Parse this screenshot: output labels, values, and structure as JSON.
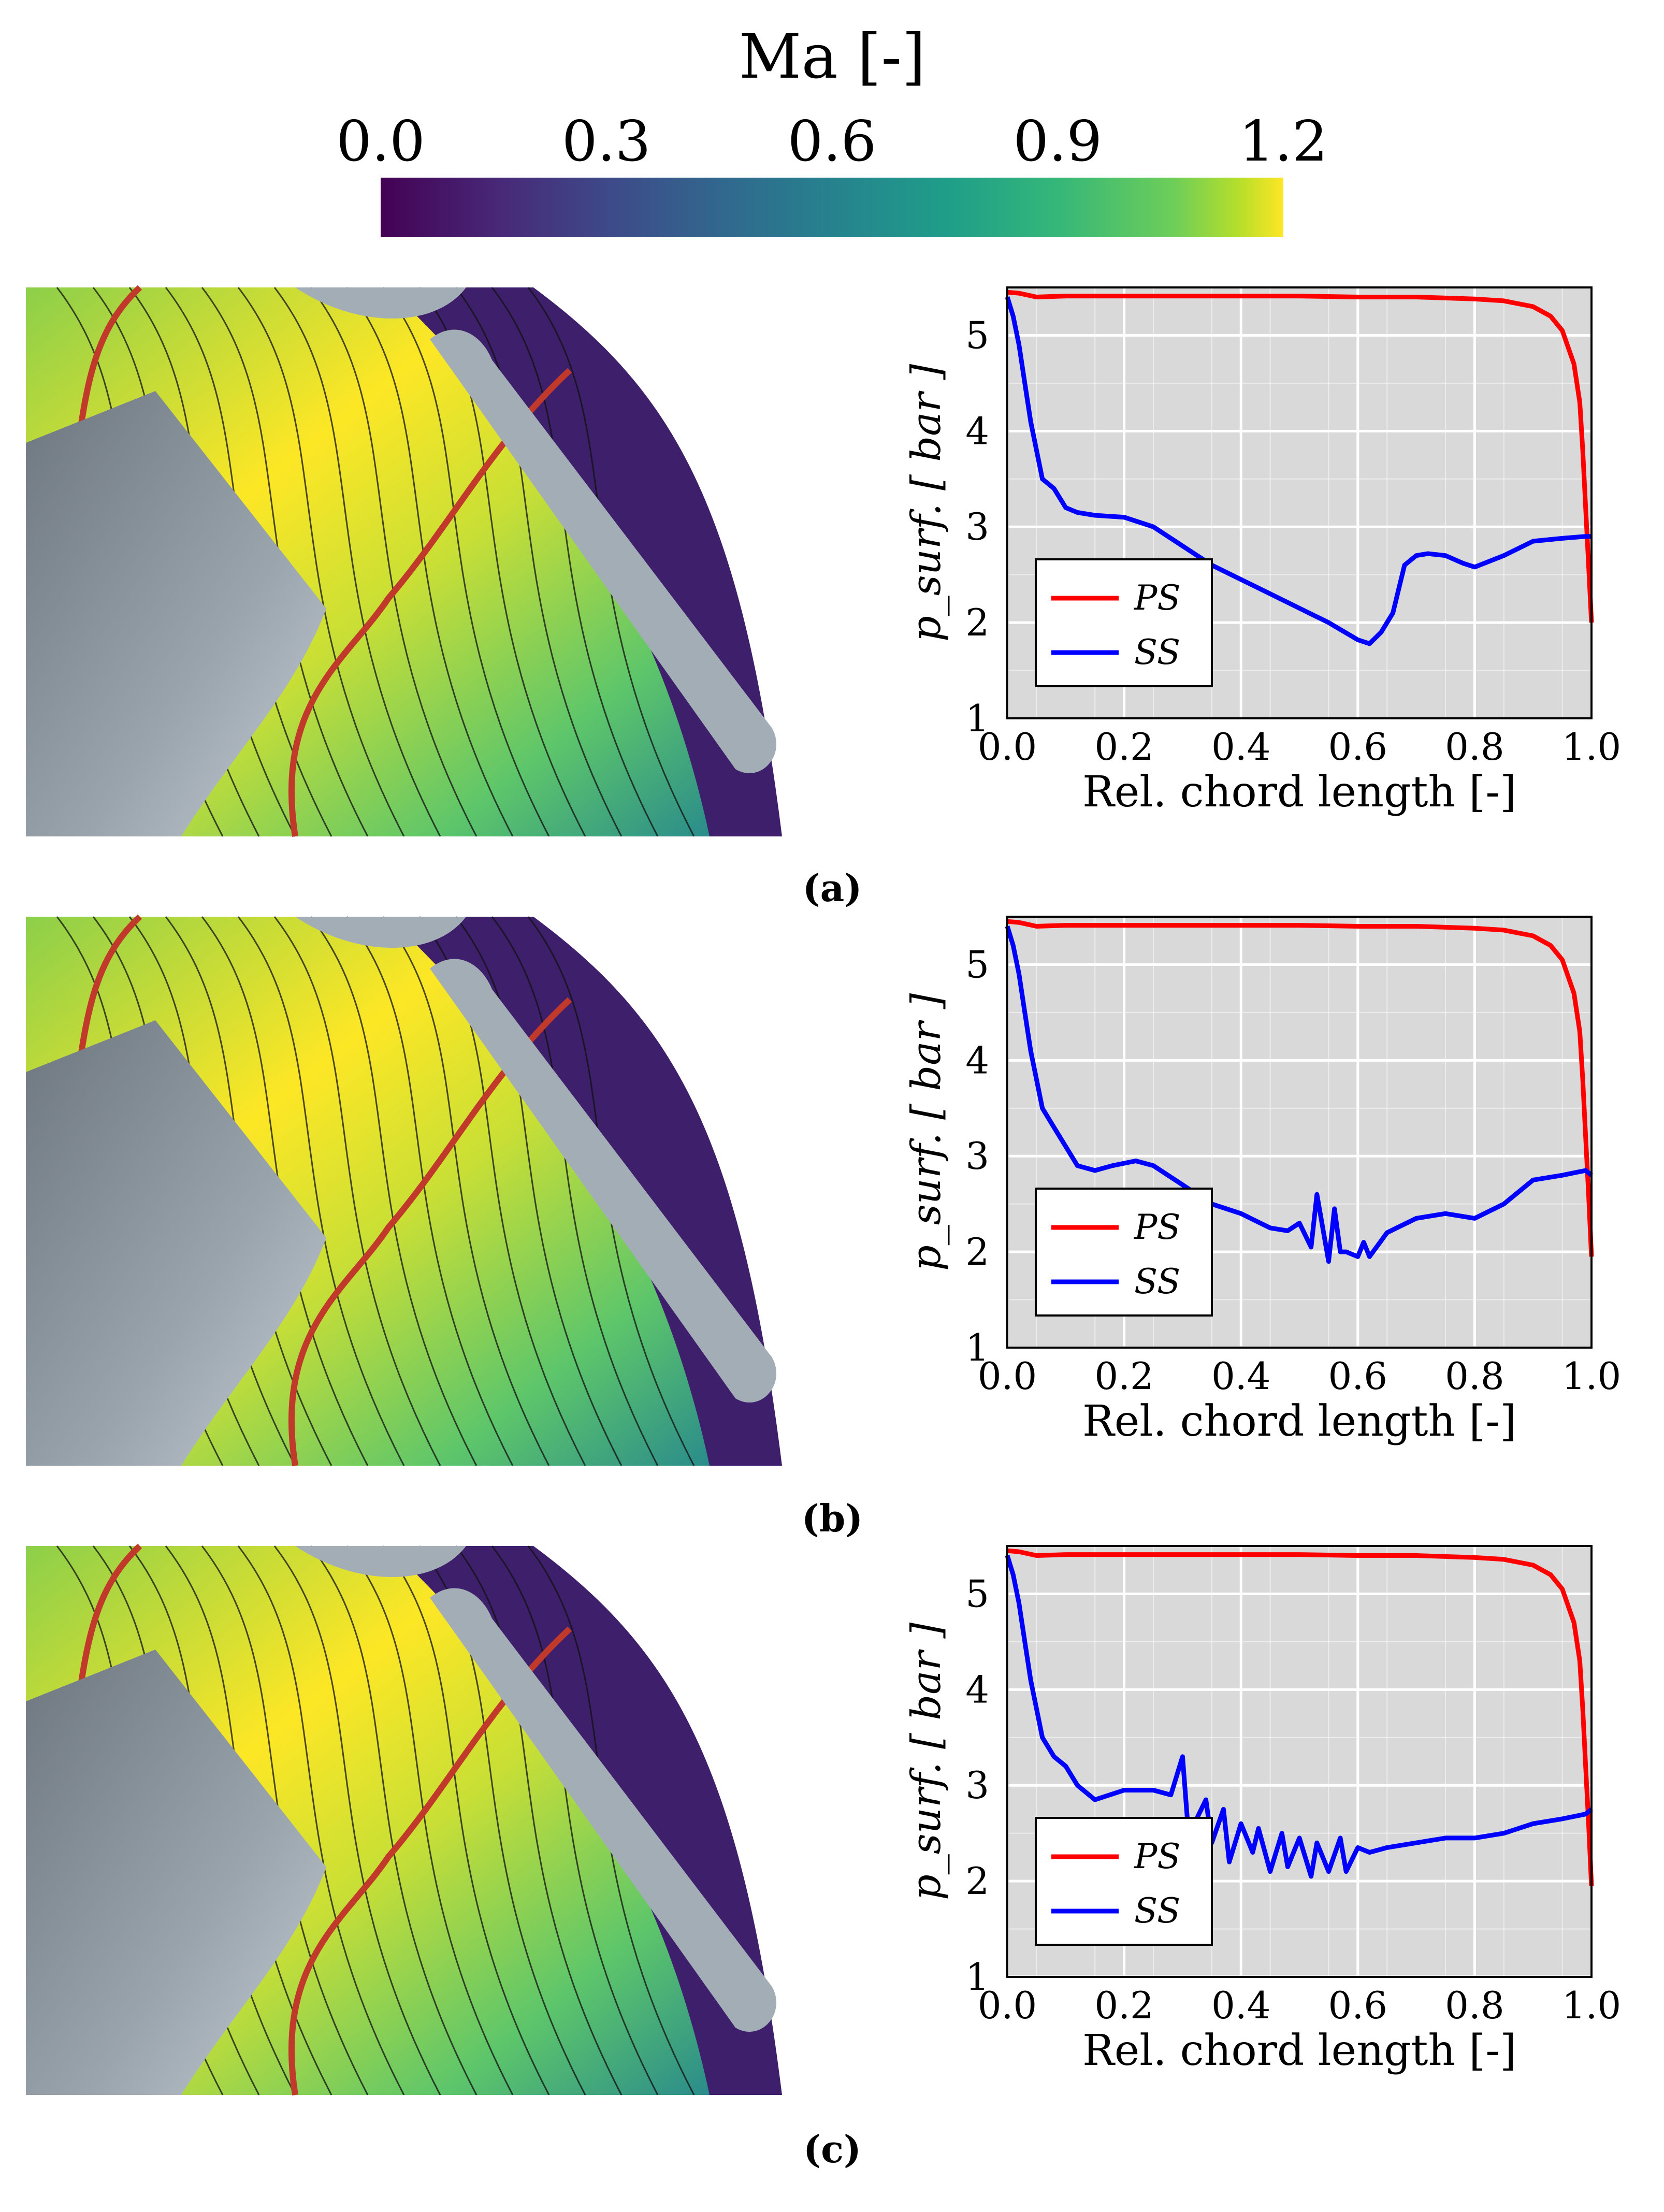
{
  "colorbar": {
    "title": "Ma [-]",
    "ticks": [
      "0.0",
      "0.3",
      "0.6",
      "0.9",
      "1.2"
    ],
    "range": [
      0.0,
      1.2
    ]
  },
  "panel_labels": [
    "(a)",
    "(b)",
    "(c)"
  ],
  "colors": {
    "ps": "#ff0000",
    "ss": "#0000ff",
    "plot_bg": "#d9d9d9",
    "blade": "#a3adb6",
    "hub": "#8c969f",
    "outer": "#3e1f6b"
  },
  "chart_data": [
    {
      "type": "line",
      "panel": "(a)",
      "xlabel": "Rel. chord length [-]",
      "ylabel": "p_surf. [ bar ]",
      "xlim": [
        0.0,
        1.0
      ],
      "ylim": [
        1,
        5.5
      ],
      "xticks": [
        "0.0",
        "0.2",
        "0.4",
        "0.6",
        "0.8",
        "1.0"
      ],
      "yticks": [
        "1",
        "2",
        "3",
        "4",
        "5"
      ],
      "legend": [
        "PS",
        "SS"
      ],
      "series": [
        {
          "name": "PS",
          "x": [
            0.0,
            0.02,
            0.05,
            0.1,
            0.2,
            0.3,
            0.4,
            0.5,
            0.6,
            0.7,
            0.8,
            0.85,
            0.9,
            0.93,
            0.95,
            0.97,
            0.98,
            0.985,
            0.99,
            0.995,
            1.0
          ],
          "y": [
            5.45,
            5.44,
            5.4,
            5.41,
            5.41,
            5.41,
            5.41,
            5.41,
            5.4,
            5.4,
            5.38,
            5.36,
            5.3,
            5.2,
            5.05,
            4.7,
            4.3,
            3.8,
            3.2,
            2.6,
            2.0
          ]
        },
        {
          "name": "SS",
          "x": [
            0.0,
            0.01,
            0.02,
            0.03,
            0.04,
            0.06,
            0.08,
            0.1,
            0.12,
            0.15,
            0.2,
            0.25,
            0.3,
            0.35,
            0.4,
            0.45,
            0.5,
            0.55,
            0.6,
            0.62,
            0.64,
            0.66,
            0.68,
            0.7,
            0.72,
            0.75,
            0.78,
            0.8,
            0.85,
            0.9,
            0.95,
            0.99,
            1.0
          ],
          "y": [
            5.4,
            5.2,
            4.9,
            4.5,
            4.1,
            3.5,
            3.4,
            3.2,
            3.15,
            3.12,
            3.1,
            3.0,
            2.8,
            2.6,
            2.45,
            2.3,
            2.15,
            2.0,
            1.82,
            1.78,
            1.9,
            2.1,
            2.6,
            2.7,
            2.72,
            2.7,
            2.62,
            2.58,
            2.7,
            2.85,
            2.88,
            2.9,
            2.9
          ]
        }
      ]
    },
    {
      "type": "line",
      "panel": "(b)",
      "xlabel": "Rel. chord length [-]",
      "ylabel": "p_surf. [ bar ]",
      "xlim": [
        0.0,
        1.0
      ],
      "ylim": [
        1,
        5.5
      ],
      "xticks": [
        "0.0",
        "0.2",
        "0.4",
        "0.6",
        "0.8",
        "1.0"
      ],
      "yticks": [
        "1",
        "2",
        "3",
        "4",
        "5"
      ],
      "legend": [
        "PS",
        "SS"
      ],
      "series": [
        {
          "name": "PS",
          "x": [
            0.0,
            0.02,
            0.05,
            0.1,
            0.2,
            0.3,
            0.4,
            0.5,
            0.6,
            0.7,
            0.8,
            0.85,
            0.9,
            0.93,
            0.95,
            0.97,
            0.98,
            0.985,
            0.99,
            0.995,
            1.0
          ],
          "y": [
            5.45,
            5.44,
            5.4,
            5.41,
            5.41,
            5.41,
            5.41,
            5.41,
            5.4,
            5.4,
            5.38,
            5.36,
            5.3,
            5.2,
            5.05,
            4.7,
            4.3,
            3.8,
            3.2,
            2.6,
            1.95
          ]
        },
        {
          "name": "SS",
          "x": [
            0.0,
            0.01,
            0.02,
            0.03,
            0.04,
            0.06,
            0.08,
            0.1,
            0.12,
            0.15,
            0.18,
            0.22,
            0.25,
            0.3,
            0.35,
            0.4,
            0.45,
            0.48,
            0.5,
            0.52,
            0.53,
            0.55,
            0.56,
            0.57,
            0.58,
            0.6,
            0.61,
            0.62,
            0.65,
            0.7,
            0.75,
            0.8,
            0.85,
            0.9,
            0.95,
            0.99,
            1.0
          ],
          "y": [
            5.4,
            5.2,
            4.9,
            4.5,
            4.1,
            3.5,
            3.3,
            3.1,
            2.9,
            2.85,
            2.9,
            2.95,
            2.9,
            2.7,
            2.5,
            2.4,
            2.25,
            2.22,
            2.3,
            2.05,
            2.6,
            1.9,
            2.45,
            2.0,
            2.0,
            1.95,
            2.1,
            1.95,
            2.2,
            2.35,
            2.4,
            2.35,
            2.5,
            2.75,
            2.8,
            2.85,
            2.8
          ]
        }
      ]
    },
    {
      "type": "line",
      "panel": "(c)",
      "xlabel": "Rel. chord length [-]",
      "ylabel": "p_surf. [ bar ]",
      "xlim": [
        0.0,
        1.0
      ],
      "ylim": [
        1,
        5.5
      ],
      "xticks": [
        "0.0",
        "0.2",
        "0.4",
        "0.6",
        "0.8",
        "1.0"
      ],
      "yticks": [
        "1",
        "2",
        "3",
        "4",
        "5"
      ],
      "legend": [
        "PS",
        "SS"
      ],
      "series": [
        {
          "name": "PS",
          "x": [
            0.0,
            0.02,
            0.05,
            0.1,
            0.2,
            0.3,
            0.4,
            0.5,
            0.6,
            0.7,
            0.8,
            0.85,
            0.9,
            0.93,
            0.95,
            0.97,
            0.98,
            0.985,
            0.99,
            0.995,
            1.0
          ],
          "y": [
            5.45,
            5.44,
            5.4,
            5.41,
            5.41,
            5.41,
            5.41,
            5.41,
            5.4,
            5.4,
            5.38,
            5.36,
            5.3,
            5.2,
            5.05,
            4.7,
            4.3,
            3.8,
            3.2,
            2.6,
            1.95
          ]
        },
        {
          "name": "SS",
          "x": [
            0.0,
            0.01,
            0.02,
            0.03,
            0.04,
            0.06,
            0.08,
            0.1,
            0.12,
            0.15,
            0.2,
            0.25,
            0.28,
            0.3,
            0.31,
            0.32,
            0.34,
            0.35,
            0.37,
            0.38,
            0.4,
            0.42,
            0.43,
            0.45,
            0.47,
            0.48,
            0.5,
            0.52,
            0.53,
            0.55,
            0.57,
            0.58,
            0.6,
            0.62,
            0.65,
            0.7,
            0.75,
            0.8,
            0.85,
            0.9,
            0.95,
            0.99,
            1.0
          ],
          "y": [
            5.4,
            5.2,
            4.9,
            4.5,
            4.1,
            3.5,
            3.3,
            3.2,
            3.0,
            2.85,
            2.95,
            2.95,
            2.9,
            3.3,
            2.5,
            2.6,
            2.85,
            2.4,
            2.75,
            2.2,
            2.6,
            2.3,
            2.55,
            2.1,
            2.5,
            2.15,
            2.45,
            2.05,
            2.4,
            2.1,
            2.45,
            2.1,
            2.35,
            2.3,
            2.35,
            2.4,
            2.45,
            2.45,
            2.5,
            2.6,
            2.65,
            2.7,
            2.75
          ]
        }
      ]
    }
  ]
}
